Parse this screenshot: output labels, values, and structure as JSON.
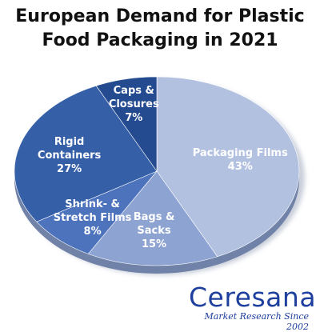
{
  "chart_data": {
    "type": "pie",
    "title_lines": [
      "European Demand for Plastic",
      "Food Packaging in 2021"
    ],
    "unit": "%",
    "slices": [
      {
        "label_lines": [
          "Packaging Films"
        ],
        "value": 43,
        "color": "#b3c1e0"
      },
      {
        "label_lines": [
          "Bags &",
          "Sacks"
        ],
        "value": 15,
        "color": "#8da3d2"
      },
      {
        "label_lines": [
          "Shrink- &",
          "Stretch Films"
        ],
        "value": 8,
        "color": "#4e73bd"
      },
      {
        "label_lines": [
          "Rigid",
          "Containers"
        ],
        "value": 27,
        "color": "#3560a8"
      },
      {
        "label_lines": [
          "Caps &",
          "Closures"
        ],
        "value": 7,
        "color": "#244b90"
      }
    ]
  },
  "brand": {
    "name": "Ceresana",
    "tagline": "Market Research Since 2002"
  }
}
